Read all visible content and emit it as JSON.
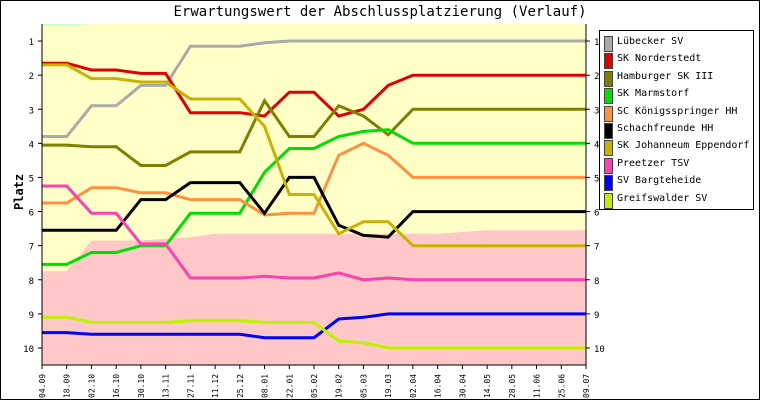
{
  "chart_data": {
    "type": "line",
    "title": "Erwartungswert der Abschlussplatzierung (Verlauf)",
    "ylabel": "Platz",
    "xlabel": "",
    "ylim": [
      10.5,
      0.5
    ],
    "y_ticks": [
      "1",
      "2",
      "3",
      "4",
      "5",
      "6",
      "7",
      "8",
      "9",
      "10"
    ],
    "categories": [
      "04.09",
      "18.09",
      "02.10",
      "16.10",
      "30.10",
      "13.11",
      "27.11",
      "11.12",
      "25.12",
      "08.01",
      "22.01",
      "05.02",
      "19.02",
      "05.03",
      "19.03",
      "02.04",
      "16.04",
      "30.04",
      "14.05",
      "28.05",
      "11.06",
      "25.06",
      "09.07"
    ],
    "bands": {
      "top_color": "#c8ffc8",
      "middle_color": "#ffffc8",
      "bottom_color": "#ffc8c8",
      "top_boundary": [
        0.55,
        0.55,
        0.5,
        0.5,
        0.5,
        0.5,
        0.5,
        0.5,
        0.5,
        0.5,
        0.5,
        0.5,
        0.5,
        0.5,
        0.5,
        0.5,
        0.5,
        0.5,
        0.5,
        0.5,
        0.5,
        0.5,
        0.5
      ],
      "bottom_boundary": [
        7.75,
        7.75,
        6.85,
        6.85,
        6.85,
        6.8,
        6.75,
        6.65,
        6.65,
        6.65,
        6.65,
        6.65,
        6.65,
        6.65,
        6.65,
        6.65,
        6.65,
        6.6,
        6.55,
        6.55,
        6.55,
        6.55,
        6.55
      ]
    },
    "series": [
      {
        "name": "Lübecker SV",
        "color": "#aaaaaa",
        "values": [
          3.8,
          3.8,
          2.9,
          2.9,
          2.3,
          2.3,
          1.15,
          1.15,
          1.15,
          1.05,
          1.0,
          1.0,
          1.0,
          1.0,
          1.0,
          1.0,
          1.0,
          1.0,
          1.0,
          1.0,
          1.0,
          1.0,
          1.0
        ]
      },
      {
        "name": "SK Norderstedt",
        "color": "#e00000",
        "values": [
          1.65,
          1.65,
          1.85,
          1.85,
          1.95,
          1.95,
          3.1,
          3.1,
          3.1,
          3.2,
          2.5,
          2.5,
          3.2,
          3.0,
          2.3,
          2.0,
          2.0,
          2.0,
          2.0,
          2.0,
          2.0,
          2.0,
          2.0
        ]
      },
      {
        "name": "Hamburger SK III",
        "color": "#808000",
        "values": [
          4.05,
          4.05,
          4.1,
          4.1,
          4.65,
          4.65,
          4.25,
          4.25,
          4.25,
          2.75,
          3.8,
          3.8,
          2.9,
          3.2,
          3.75,
          3.0,
          3.0,
          3.0,
          3.0,
          3.0,
          3.0,
          3.0,
          3.0
        ]
      },
      {
        "name": "SK Marmstorf",
        "color": "#00e000",
        "values": [
          7.55,
          7.55,
          7.2,
          7.2,
          7.0,
          7.0,
          6.05,
          6.05,
          6.05,
          4.85,
          4.15,
          4.15,
          3.8,
          3.65,
          3.6,
          4.0,
          4.0,
          4.0,
          4.0,
          4.0,
          4.0,
          4.0,
          4.0
        ]
      },
      {
        "name": "SC Königsspringer HH",
        "color": "#ff9040",
        "values": [
          5.75,
          5.75,
          5.3,
          5.3,
          5.45,
          5.45,
          5.65,
          5.65,
          5.65,
          6.1,
          6.05,
          6.05,
          4.35,
          4.0,
          4.35,
          5.0,
          5.0,
          5.0,
          5.0,
          5.0,
          5.0,
          5.0,
          5.0
        ]
      },
      {
        "name": "Schachfreunde HH",
        "color": "#000000",
        "values": [
          6.55,
          6.55,
          6.55,
          6.55,
          5.65,
          5.65,
          5.15,
          5.15,
          5.15,
          6.05,
          5.0,
          5.0,
          6.4,
          6.7,
          6.75,
          6.0,
          6.0,
          6.0,
          6.0,
          6.0,
          6.0,
          6.0,
          6.0
        ]
      },
      {
        "name": "SK Johanneum Eppendorf",
        "color": "#c8b400",
        "values": [
          1.7,
          1.7,
          2.1,
          2.1,
          2.2,
          2.2,
          2.7,
          2.7,
          2.7,
          3.5,
          5.5,
          5.5,
          6.65,
          6.3,
          6.3,
          7.0,
          7.0,
          7.0,
          7.0,
          7.0,
          7.0,
          7.0,
          7.0
        ]
      },
      {
        "name": "Preetzer TSV",
        "color": "#ff40b0",
        "values": [
          5.25,
          5.25,
          6.05,
          6.05,
          6.95,
          6.95,
          7.95,
          7.95,
          7.95,
          7.9,
          7.95,
          7.95,
          7.8,
          8.0,
          7.95,
          8.0,
          8.0,
          8.0,
          8.0,
          8.0,
          8.0,
          8.0,
          8.0
        ]
      },
      {
        "name": "SV Bargteheide",
        "color": "#0000ff",
        "values": [
          9.55,
          9.55,
          9.6,
          9.6,
          9.6,
          9.6,
          9.6,
          9.6,
          9.6,
          9.7,
          9.7,
          9.7,
          9.15,
          9.1,
          9.0,
          9.0,
          9.0,
          9.0,
          9.0,
          9.0,
          9.0,
          9.0,
          9.0
        ]
      },
      {
        "name": "Greifswalder SV",
        "color": "#c0f000",
        "values": [
          9.1,
          9.1,
          9.25,
          9.25,
          9.25,
          9.25,
          9.2,
          9.2,
          9.2,
          9.25,
          9.25,
          9.25,
          9.8,
          9.85,
          10.0,
          10.0,
          10.0,
          10.0,
          10.0,
          10.0,
          10.0,
          10.0,
          10.0
        ]
      }
    ],
    "grid": false,
    "legend_position": "right"
  }
}
